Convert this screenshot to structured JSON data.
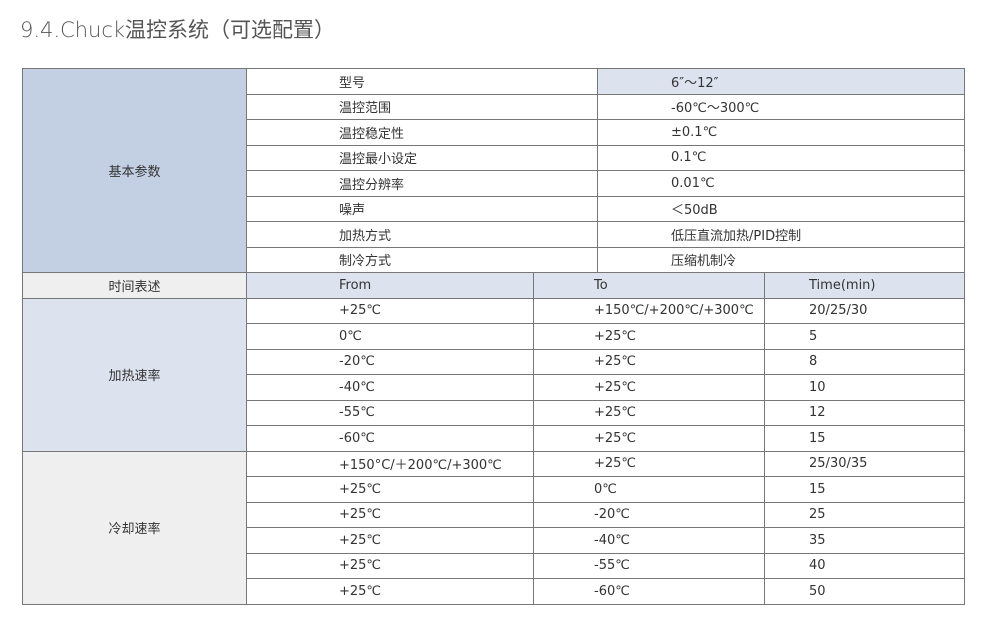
{
  "title": "9.4.Chuck温控系统（可选配置）",
  "basic": {
    "label": "基本参数",
    "rows": [
      [
        "型号",
        "6″～12″"
      ],
      [
        "温控范围",
        "-60℃～300℃"
      ],
      [
        "温控稳定性",
        "±0.1℃"
      ],
      [
        "温控最小设定",
        "0.1℃"
      ],
      [
        "温控分辨率",
        "0.01℃"
      ],
      [
        "噪声",
        "＜50dB"
      ],
      [
        "加热方式",
        "低压直流加热/PID控制"
      ],
      [
        "制冷方式",
        "压缩机制冷"
      ]
    ]
  },
  "time_header": {
    "label": "时间表述",
    "columns": [
      "From",
      "To",
      "Time(min)"
    ]
  },
  "heating": {
    "label": "加热速率",
    "rows": [
      [
        "+25℃",
        "+150℃/+200℃/+300℃",
        "20/25/30"
      ],
      [
        "0℃",
        "+25℃",
        "5"
      ],
      [
        "-20℃",
        "+25℃",
        "8"
      ],
      [
        "-40℃",
        "+25℃",
        "10"
      ],
      [
        "-55℃",
        "+25℃",
        "12"
      ],
      [
        "-60℃",
        "+25℃",
        "15"
      ]
    ]
  },
  "cooling": {
    "label": "冷却速率",
    "rows": [
      [
        "+150°C/＋200℃/+300℃",
        "+25℃",
        "25/30/35"
      ],
      [
        "+25℃",
        "0℃",
        "15"
      ],
      [
        "+25℃",
        "-20℃",
        "25"
      ],
      [
        "+25℃",
        "-40℃",
        "35"
      ],
      [
        "+25℃",
        "-55℃",
        "40"
      ],
      [
        "+25℃",
        "-60℃",
        "50"
      ]
    ]
  }
}
